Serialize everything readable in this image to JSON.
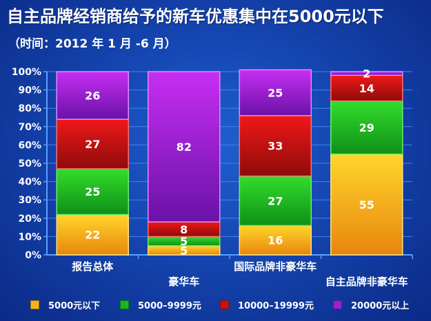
{
  "title": "自主品牌经销商给予的新车优惠集中在5000元以下",
  "subtitle": "（时间：2012 年 1 月 -6 月）",
  "colors": {
    "5000元以下": "#f5b21a",
    "5000-9999元": "#16b81e",
    "10000-19999元": "#c21414",
    "20000元以上": "#9b1fd6"
  },
  "legend": [
    "5000元以下",
    "5000–9999元",
    "10000–19999元",
    "20000元以上"
  ],
  "chart_data": {
    "type": "bar",
    "stacked": true,
    "percent": true,
    "categories": [
      "报告总体",
      "豪华车",
      "国际品牌非豪华车",
      "自主品牌非豪华车"
    ],
    "series": [
      {
        "name": "5000元以下",
        "values": [
          22,
          5,
          16,
          55
        ]
      },
      {
        "name": "5000–9999元",
        "values": [
          25,
          5,
          27,
          29
        ]
      },
      {
        "name": "10000–19999元",
        "values": [
          27,
          8,
          33,
          14
        ]
      },
      {
        "name": "20000元以上",
        "values": [
          26,
          82,
          25,
          2
        ]
      }
    ],
    "yticks": [
      "0%",
      "10%",
      "20%",
      "30%",
      "40%",
      "50%",
      "60%",
      "70%",
      "80%",
      "90%",
      "100%"
    ],
    "ylim": [
      0,
      100
    ],
    "grid": true,
    "legend_position": "bottom"
  }
}
